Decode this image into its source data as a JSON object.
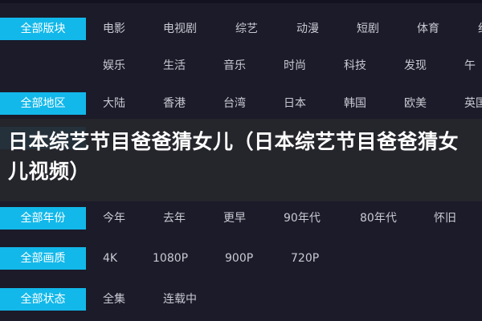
{
  "filters": [
    {
      "label": "全部版块",
      "items": [
        "电影",
        "电视剧",
        "综艺",
        "动漫",
        "短剧",
        "体育",
        "纪"
      ]
    },
    {
      "label": "",
      "items": [
        "娱乐",
        "生活",
        "音乐",
        "时尚",
        "科技",
        "发现",
        "午"
      ]
    },
    {
      "label": "全部地区",
      "items": [
        "大陆",
        "香港",
        "台湾",
        "日本",
        "韩国",
        "欧美",
        "英国"
      ]
    },
    {
      "label": "全部年份",
      "items": [
        "今年",
        "去年",
        "更早",
        "90年代",
        "80年代",
        "怀旧"
      ]
    },
    {
      "label": "全部画质",
      "items": [
        "4K",
        "1080P",
        "900P",
        "720P"
      ]
    },
    {
      "label": "全部状态",
      "items": [
        "全集",
        "连载中"
      ]
    }
  ],
  "overlay_title": "日本综艺节目爸爸猜女儿（日本综艺节目爸爸猜女儿视频）",
  "colors": {
    "background": "#1b1b2a",
    "accent": "#12b8ea",
    "text": "#c9c9d2"
  }
}
